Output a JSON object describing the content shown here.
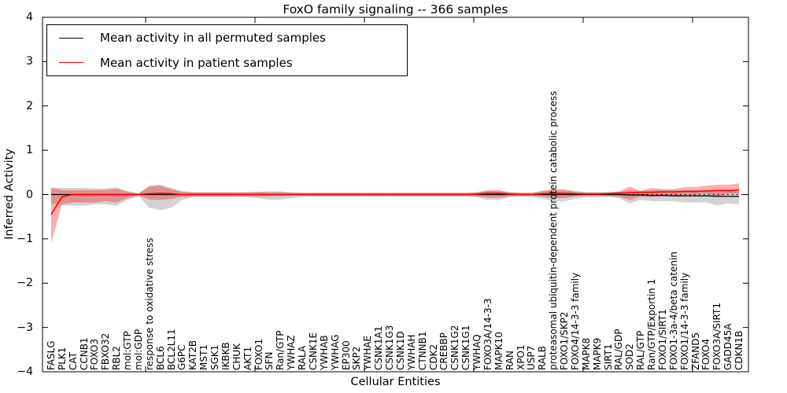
{
  "title": "FoxO family signaling -- 366 samples",
  "legend": {
    "items": [
      {
        "label": "Mean activity in all permuted samples",
        "color": "#000000"
      },
      {
        "label": "Mean activity in patient samples",
        "color": "#ff0000"
      }
    ]
  },
  "axes": {
    "x_label": "Cellular Entities",
    "y_label": "Inferred Activity",
    "y_ticks": [
      {
        "value": 4,
        "label": "4"
      },
      {
        "value": 3,
        "label": "3"
      },
      {
        "value": 2,
        "label": "2"
      },
      {
        "value": 1,
        "label": "1"
      },
      {
        "value": 0,
        "label": "0"
      },
      {
        "value": -1,
        "label": "−1"
      },
      {
        "value": -2,
        "label": "−2"
      },
      {
        "value": -3,
        "label": "−3"
      },
      {
        "value": -4,
        "label": "−4"
      }
    ]
  },
  "colors": {
    "patient_line": "#ff0000",
    "permuted_line": "#000000",
    "patient_band": "#ff0000",
    "permuted_band": "#808080",
    "frame": "#000000",
    "background": "#ffffff"
  },
  "chart_data": {
    "type": "line",
    "title": "FoxO family signaling -- 366 samples",
    "xlabel": "Cellular Entities",
    "ylabel": "Inferred Activity",
    "ylim": [
      -4,
      4
    ],
    "grid": false,
    "legend_position": "upper left",
    "categories": [
      "FASLG",
      "PLK1",
      "CAT",
      "CCNB1",
      "FOXO3",
      "FBXO32",
      "RBL2",
      "mol:GTP",
      "mol:GDP",
      "response to oxidative stress",
      "BCL6",
      "BCL2L11",
      "G6PC",
      "KAT2B",
      "MST1",
      "SGK1",
      "IKBKB",
      "CHUK",
      "AKT1",
      "FOXO1",
      "SFN",
      "Ran/GTP",
      "YWHAZ",
      "RALA",
      "CSNK1E",
      "YWHAB",
      "YWHAG",
      "EP300",
      "SKP2",
      "YWHAE",
      "CSNK1A1",
      "CSNK1G3",
      "CSNK1D",
      "YWHAH",
      "CTNNB1",
      "CDK2",
      "CREBBP",
      "CSNK1G2",
      "CSNK1G1",
      "YWHAQ",
      "FOXO3A/14-3-3",
      "MAPK10",
      "RAN",
      "XPO1",
      "USP7",
      "RALB",
      "proteasomal ubiquitin-dependent protein catabolic process",
      "FOXO1/SKP2",
      "FOXO4/14-3-3 family",
      "MAPK8",
      "MAPK9",
      "SIRT1",
      "RAL/GDP",
      "SOD2",
      "RAL/GTP",
      "Ran/GTP/Exportin 1",
      "FOXO1/SIRT1",
      "FOXO1-3a-4/beta catenin",
      "FOXO1/14-3-3 family",
      "ZFAND5",
      "FOXO4",
      "FOXO3A/SIRT1",
      "GADD45A",
      "CDKN1B"
    ],
    "series": [
      {
        "name": "Mean activity in all permuted samples",
        "color": "#000000",
        "linestyle": "solid",
        "values": [
          0,
          0,
          0,
          0,
          0,
          0,
          0,
          0,
          0,
          0,
          0,
          0,
          0,
          0,
          0,
          0,
          0,
          0,
          0,
          0,
          0,
          0,
          0,
          0,
          0,
          0,
          0,
          0,
          0,
          0,
          0,
          0,
          0,
          0,
          0,
          0,
          0,
          0,
          0,
          0,
          0,
          0,
          0,
          0,
          0,
          0,
          0,
          0,
          0,
          0,
          0,
          0,
          0,
          -0.01,
          -0.01,
          -0.02,
          -0.02,
          -0.03,
          -0.03,
          -0.03,
          -0.03,
          -0.04,
          -0.04,
          -0.04
        ]
      },
      {
        "name": "Mean activity in patient samples",
        "color": "#ff0000",
        "linestyle": "solid",
        "values": [
          -0.45,
          -0.05,
          0,
          0,
          0,
          0,
          0,
          0,
          0,
          0.02,
          0.03,
          0.02,
          0,
          0,
          0,
          0,
          0,
          0,
          0,
          0,
          0,
          0,
          0,
          0,
          0,
          0,
          0,
          0,
          0,
          0,
          0,
          0,
          0,
          0,
          0,
          0,
          0,
          0,
          0,
          0.01,
          0.03,
          0.03,
          0.01,
          0,
          0,
          0.02,
          0.03,
          0.03,
          0.02,
          0.01,
          0.01,
          0.02,
          0.03,
          0.04,
          0.05,
          0.05,
          0.06,
          0.06,
          0.07,
          0.07,
          0.08,
          0.09,
          0.09,
          0.1
        ]
      }
    ],
    "bands": [
      {
        "name": "permuted samples confidence band",
        "color": "#808080",
        "opacity": 0.35,
        "upper": [
          0.15,
          0.15,
          0.15,
          0.15,
          0.14,
          0.14,
          0.16,
          0.08,
          0.03,
          0.2,
          0.22,
          0.15,
          0.08,
          0.05,
          0.05,
          0.05,
          0.05,
          0.05,
          0.05,
          0.06,
          0.07,
          0.07,
          0.05,
          0.04,
          0.04,
          0.04,
          0.04,
          0.04,
          0.04,
          0.04,
          0.04,
          0.04,
          0.04,
          0.04,
          0.04,
          0.04,
          0.04,
          0.04,
          0.04,
          0.05,
          0.08,
          0.08,
          0.05,
          0.04,
          0.04,
          0.08,
          0.1,
          0.1,
          0.08,
          0.05,
          0.05,
          0.05,
          0.06,
          0.1,
          0.08,
          0.1,
          0.1,
          0.1,
          0.1,
          0.1,
          0.1,
          0.1,
          0.1,
          0.12
        ],
        "lower": [
          -0.2,
          -0.25,
          -0.25,
          -0.25,
          -0.22,
          -0.22,
          -0.25,
          -0.12,
          -0.04,
          -0.3,
          -0.35,
          -0.3,
          -0.12,
          -0.06,
          -0.06,
          -0.06,
          -0.06,
          -0.06,
          -0.06,
          -0.08,
          -0.12,
          -0.12,
          -0.08,
          -0.05,
          -0.05,
          -0.05,
          -0.05,
          -0.05,
          -0.05,
          -0.05,
          -0.05,
          -0.05,
          -0.05,
          -0.05,
          -0.05,
          -0.05,
          -0.05,
          -0.05,
          -0.05,
          -0.06,
          -0.12,
          -0.12,
          -0.06,
          -0.05,
          -0.05,
          -0.1,
          -0.15,
          -0.15,
          -0.1,
          -0.06,
          -0.06,
          -0.06,
          -0.08,
          -0.2,
          -0.12,
          -0.15,
          -0.15,
          -0.15,
          -0.18,
          -0.18,
          -0.18,
          -0.25,
          -0.2,
          -0.22
        ]
      },
      {
        "name": "patient samples confidence band",
        "color": "#ff0000",
        "opacity": 0.32,
        "upper": [
          0.15,
          0.1,
          0.1,
          0.1,
          0.1,
          0.1,
          0.13,
          0.06,
          0.02,
          0.18,
          0.2,
          0.12,
          0.06,
          0.05,
          0.05,
          0.05,
          0.05,
          0.05,
          0.05,
          0.06,
          0.05,
          0.05,
          0.04,
          0.04,
          0.04,
          0.04,
          0.04,
          0.04,
          0.04,
          0.04,
          0.04,
          0.04,
          0.04,
          0.04,
          0.04,
          0.04,
          0.04,
          0.04,
          0.04,
          0.05,
          0.1,
          0.1,
          0.05,
          0.04,
          0.04,
          0.08,
          0.12,
          0.12,
          0.06,
          0.05,
          0.05,
          0.05,
          0.07,
          0.18,
          0.08,
          0.15,
          0.12,
          0.12,
          0.17,
          0.17,
          0.2,
          0.22,
          0.22,
          0.25
        ],
        "lower": [
          -1.1,
          -0.22,
          -0.18,
          -0.18,
          -0.18,
          -0.15,
          -0.18,
          -0.08,
          -0.02,
          -0.12,
          -0.12,
          -0.1,
          -0.05,
          -0.04,
          -0.04,
          -0.04,
          -0.04,
          -0.04,
          -0.04,
          -0.05,
          -0.04,
          -0.04,
          -0.03,
          -0.03,
          -0.03,
          -0.03,
          -0.03,
          -0.03,
          -0.03,
          -0.03,
          -0.03,
          -0.03,
          -0.03,
          -0.03,
          -0.03,
          -0.03,
          -0.03,
          -0.03,
          -0.03,
          -0.04,
          -0.07,
          -0.07,
          -0.04,
          -0.03,
          -0.03,
          -0.05,
          -0.08,
          -0.08,
          -0.04,
          -0.03,
          -0.03,
          -0.03,
          -0.05,
          -0.12,
          -0.05,
          -0.06,
          -0.04,
          -0.04,
          0,
          0,
          0.02,
          -0.05,
          0.02,
          0.02
        ]
      }
    ],
    "zero_line": {
      "value": 0,
      "style": "dotted",
      "color": "#000000"
    }
  }
}
